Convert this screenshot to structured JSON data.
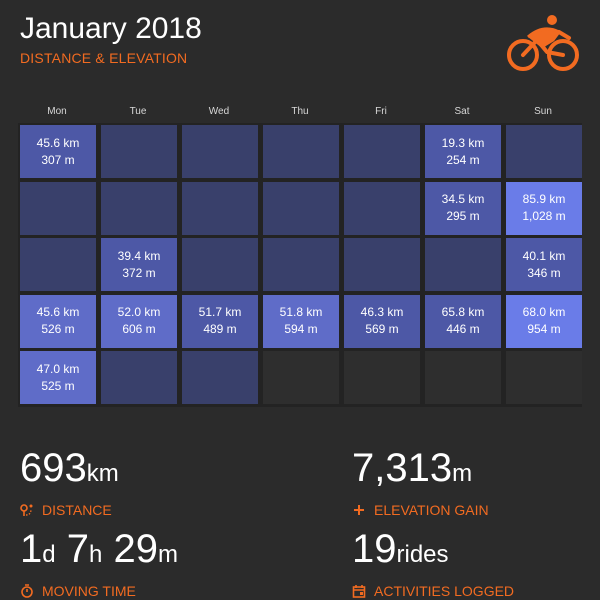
{
  "header": {
    "title": "January 2018",
    "subtitle": "DISTANCE & ELEVATION",
    "logo_icon": "cyclist-icon"
  },
  "colors": {
    "accent": "#f26b21",
    "background": "#2b2b2b",
    "cell_empty": "#39406b",
    "cell_low": "#4d58a6",
    "cell_mid": "#5f6cc8",
    "cell_high": "#6a7ce8",
    "cell_outside_month": "#2e2e2e"
  },
  "calendar": {
    "weekdays": [
      "Mon",
      "Tue",
      "Wed",
      "Thu",
      "Fri",
      "Sat",
      "Sun"
    ],
    "weeks": [
      [
        {
          "km": "45.6 km",
          "m": "307 m",
          "level": 1
        },
        {
          "km": "",
          "m": "",
          "level": 0
        },
        {
          "km": "",
          "m": "",
          "level": 0
        },
        {
          "km": "",
          "m": "",
          "level": 0
        },
        {
          "km": "",
          "m": "",
          "level": 0
        },
        {
          "km": "19.3 km",
          "m": "254 m",
          "level": 1
        },
        {
          "km": "",
          "m": "",
          "level": 0
        }
      ],
      [
        {
          "km": "",
          "m": "",
          "level": 0
        },
        {
          "km": "",
          "m": "",
          "level": 0
        },
        {
          "km": "",
          "m": "",
          "level": 0
        },
        {
          "km": "",
          "m": "",
          "level": 0
        },
        {
          "km": "",
          "m": "",
          "level": 0
        },
        {
          "km": "34.5 km",
          "m": "295 m",
          "level": 1
        },
        {
          "km": "85.9 km",
          "m": "1,028 m",
          "level": 3
        }
      ],
      [
        {
          "km": "",
          "m": "",
          "level": 0
        },
        {
          "km": "39.4 km",
          "m": "372 m",
          "level": 1
        },
        {
          "km": "",
          "m": "",
          "level": 0
        },
        {
          "km": "",
          "m": "",
          "level": 0
        },
        {
          "km": "",
          "m": "",
          "level": 0
        },
        {
          "km": "",
          "m": "",
          "level": 0
        },
        {
          "km": "40.1 km",
          "m": "346 m",
          "level": 1
        }
      ],
      [
        {
          "km": "45.6 km",
          "m": "526 m",
          "level": 2
        },
        {
          "km": "52.0 km",
          "m": "606 m",
          "level": 2
        },
        {
          "km": "51.7 km",
          "m": "489 m",
          "level": 1
        },
        {
          "km": "51.8 km",
          "m": "594 m",
          "level": 2
        },
        {
          "km": "46.3 km",
          "m": "569 m",
          "level": 1
        },
        {
          "km": "65.8 km",
          "m": "446 m",
          "level": 1
        },
        {
          "km": "68.0 km",
          "m": "954 m",
          "level": 3
        }
      ],
      [
        {
          "km": "47.0 km",
          "m": "525 m",
          "level": 2
        },
        {
          "km": "",
          "m": "",
          "level": 0
        },
        {
          "km": "",
          "m": "",
          "level": 0
        },
        {
          "km": "",
          "m": "",
          "level": -1
        },
        {
          "km": "",
          "m": "",
          "level": -1
        },
        {
          "km": "",
          "m": "",
          "level": -1
        },
        {
          "km": "",
          "m": "",
          "level": -1
        }
      ]
    ]
  },
  "stats": {
    "distance": {
      "value": "693",
      "unit": "km",
      "label": "DISTANCE",
      "icon": "route-icon"
    },
    "elevation": {
      "value": "7,313",
      "unit": "m",
      "label": "ELEVATION GAIN",
      "icon": "plus-icon"
    },
    "moving_time": {
      "d": "1",
      "d_unit": "d",
      "h": "7",
      "h_unit": "h",
      "m": "29",
      "m_unit": "m",
      "label": "MOVING TIME",
      "icon": "stopwatch-icon"
    },
    "activities": {
      "value": "19",
      "unit": "rides",
      "label": "ACTIVITIES LOGGED",
      "icon": "calendar-icon"
    }
  }
}
